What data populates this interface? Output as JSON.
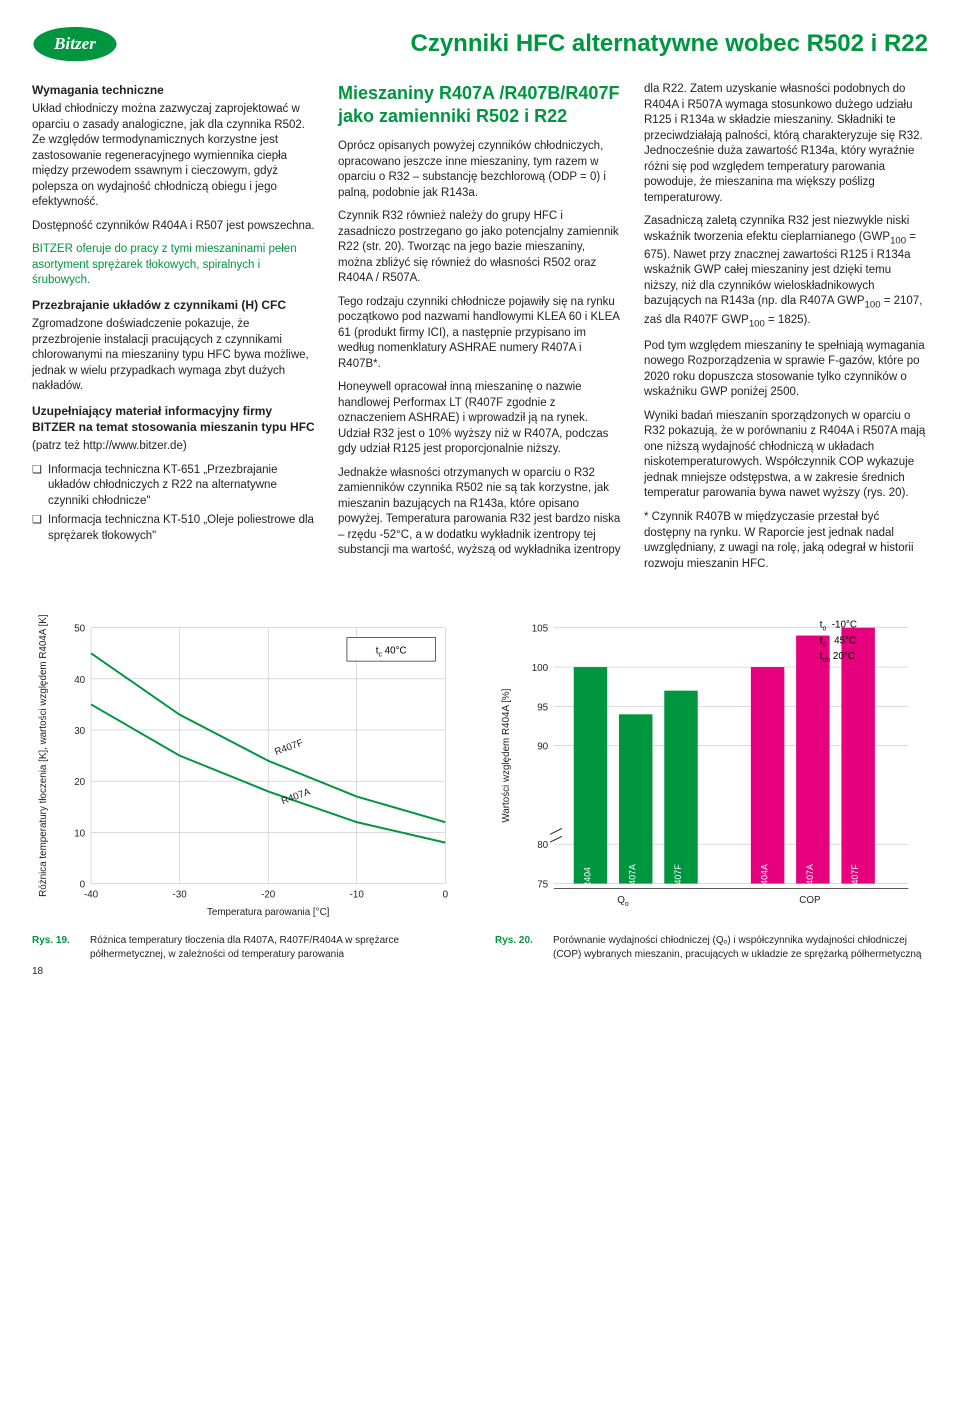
{
  "pageTitle": "Czynniki HFC alternatywne wobec R502 i R22",
  "pageNumber": "18",
  "col1": {
    "h1": "Wymagania techniczne",
    "p1": "Układ chłodniczy można zazwyczaj zaprojektować w oparciu o zasady analogiczne, jak dla czynnika R502. Ze względów termodynamicznych korzystne jest zastosowanie regeneracyjnego wymiennika ciepła między przewodem ssawnym i cieczowym, gdyż polepsza on wydajność chłodniczą obiegu i jego efektywność.",
    "p2": "Dostępność czynników R404A i R507 jest powszechna.",
    "p3": "BITZER oferuje do pracy z tymi mieszaninami pełen asortyment sprężarek tłokowych, spiralnych i śrubowych.",
    "h2": "Przezbrajanie układów z czynnikami (H) CFC",
    "p4": "Zgromadzone doświadczenie pokazuje, że przezbrojenie instalacji pracujących z czynnikami chlorowanymi na mieszaniny typu HFC bywa możliwe, jednak w wielu przypadkach wymaga zbyt dużych nakładów.",
    "h3": "Uzupełniający materiał informacyjny firmy BITZER na temat stosowania mieszanin typu HFC",
    "p5": "(patrz też http://www.bitzer.de)",
    "li1": "Informacja techniczna KT-651 „Przezbrajanie układów chłodniczych z R22 na alternatywne czynniki chłodnicze\"",
    "li2": "Informacja techniczna KT-510 „Oleje poliestrowe dla sprężarek tłokowych\""
  },
  "col2": {
    "gh": "Mieszaniny R407A /R407B/R407F jako zamienniki R502 i R22",
    "p1": "Oprócz opisanych powyżej czynników chłodniczych, opracowano jeszcze inne mieszaniny, tym razem w oparciu o R32 – substancję bezchlorową (ODP = 0) i palną, podobnie jak R143a.",
    "p2": "Czynnik R32 również należy do grupy HFC i zasadniczo postrzegano go jako potencjalny zamiennik R22 (str. 20). Tworząc na jego bazie mieszaniny, można zbliżyć się również do własności R502 oraz R404A / R507A.",
    "p3": "Tego rodzaju czynniki chłodnicze pojawiły się na rynku początkowo pod nazwami handlowymi KLEA 60 i KLEA 61 (produkt firmy ICI), a następnie przypisano im według nomenklatury ASHRAE numery R407A i R407B*.",
    "p4": "Honeywell opracował inną mieszaninę o nazwie handlowej Performax LT (R407F zgodnie z oznaczeniem ASHRAE) i wprowadził ją na rynek. Udział R32 jest o 10% wyższy niż w R407A, podczas gdy udział R125 jest proporcjonalnie niższy.",
    "p5": "Jednakże własności otrzymanych w oparciu o R32 zamienników czynnika R502 nie są tak korzystne, jak mieszanin bazujących na R143a, które opisano powyżej. Temperatura parowania R32 jest bardzo niska – rzędu -52°C, a w dodatku wykładnik izentropy tej substancji ma wartość, wyższą od wykładnika izentropy"
  },
  "col3": {
    "p1": "dla R22. Zatem uzyskanie własności podobnych do R404A i R507A wymaga stosunkowo dużego udziału R125 i R134a w składzie mieszaniny. Składniki te przeciwdziałają palności, którą charakteryzuje się R32. Jednocześnie duża zawartość R134a, który wyraźnie różni się pod względem temperatury parowania powoduje, że mieszanina ma większy poślizg temperaturowy.",
    "p2a": "Zasadniczą zaletą czynnika R32 jest niezwykle niski wskaźnik tworzenia efektu cieplarnianego (GWP",
    "p2b": " = 675). Nawet przy znacznej zawartości R125 i R134a wskaźnik GWP całej mieszaniny jest dzięki temu niższy, niż dla czynników wieloskładnikowych bazujących na R143a (np. dla R407A GWP",
    "p2c": " = 2107, zaś dla R407F GWP",
    "p2d": " = 1825).",
    "sub100": "100",
    "p3": "Pod tym względem mieszaniny te spełniają wymagania nowego Rozporządzenia w sprawie F-gazów, które po 2020 roku dopuszcza stosowanie tylko czynników o wskaźniku GWP poniżej 2500.",
    "p4": "Wyniki badań mieszanin sporządzonych w oparciu o R32 pokazują, że w porównaniu z R404A i R507A mają one niższą wydajność chłodniczą w układach niskotemperaturowych. Współczynnik COP wykazuje jednak mniejsze odstępstwa, a w zakresie średnich temperatur parowania bywa nawet wyższy (rys. 20).",
    "p5": "* Czynnik R407B w międzyczasie przestał być dostępny na rynku. W Raporcie jest jednak nadal uwzględniany, z uwagi na rolę, jaką odegrał w historii rozwoju mieszanin HFC."
  },
  "chart1": {
    "yTitle": "Różnica temperatury tłoczenia [K], wartości względem R404A [K]",
    "xTitle": "Temperatura parowania [°C]",
    "xlim": [
      -40,
      0
    ],
    "ylim": [
      0,
      50
    ],
    "xticks": [
      -40,
      -30,
      -20,
      -10,
      0
    ],
    "yticks": [
      0,
      10,
      20,
      30,
      40,
      50
    ],
    "legend": "tₒ 40°C",
    "series": [
      {
        "name": "R407F",
        "points": [
          [
            -40,
            45
          ],
          [
            -30,
            33
          ],
          [
            -20,
            24
          ],
          [
            -10,
            17
          ],
          [
            0,
            12
          ]
        ]
      },
      {
        "name": "R407A",
        "points": [
          [
            -40,
            35
          ],
          [
            -30,
            25
          ],
          [
            -20,
            18
          ],
          [
            -10,
            12
          ],
          [
            0,
            8
          ]
        ]
      }
    ],
    "curveColor": "#009640",
    "gridColor": "#b7b7b7",
    "fig": "Rys. 19.",
    "caption": "Różnica temperatury tłoczenia dla R407A, R407F/R404A w sprężarce półhermetycznej, w zależności od temperatury parowania"
  },
  "chart2": {
    "yTitle": "Wartości względem R404A [%]",
    "ylim": [
      75,
      105
    ],
    "yticks": [
      75,
      80,
      90,
      95,
      100,
      105
    ],
    "groupLabels": [
      "Qₒ",
      "COP"
    ],
    "legend": {
      "to": "-10°C",
      "tc": "45°C",
      "toh": "20°C"
    },
    "bars": [
      {
        "label": "R404",
        "value": 100,
        "color": "#009640",
        "group": 0
      },
      {
        "label": "R407A",
        "value": 94,
        "color": "#009640",
        "group": 0
      },
      {
        "label": "R407F",
        "value": 97,
        "color": "#009640",
        "group": 0
      },
      {
        "label": "R404A",
        "value": 100,
        "color": "#e6007e",
        "group": 1
      },
      {
        "label": "R407A",
        "value": 104,
        "color": "#e6007e",
        "group": 1
      },
      {
        "label": "R407F",
        "value": 105,
        "color": "#e6007e",
        "group": 1
      }
    ],
    "fig": "Rys. 20.",
    "caption": "Porównanie wydajności chłodniczej (Qₒ) i współczynnika wydajności chłodniczej (COP) wybranych mieszanin, pracujących w układzie ze sprężarką półhermetyczną"
  }
}
